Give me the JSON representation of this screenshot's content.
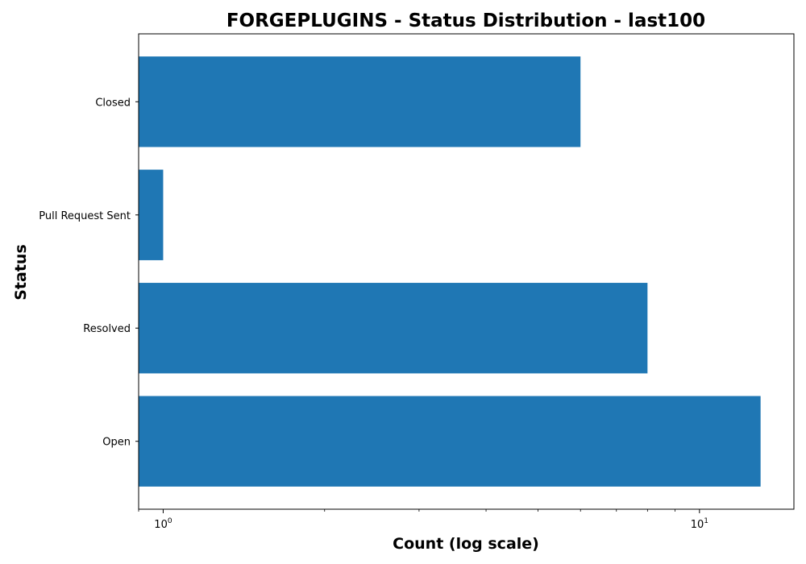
{
  "chart_data": {
    "type": "bar",
    "orientation": "horizontal",
    "title": "FORGEPLUGINS - Status Distribution - last100",
    "xlabel": "Count (log scale)",
    "ylabel": "Status",
    "x_scale": "log",
    "xlim": [
      0.9,
      15
    ],
    "x_ticks": [
      {
        "base": "10",
        "exponent": "0",
        "value": 1
      },
      {
        "base": "10",
        "exponent": "1",
        "value": 10
      }
    ],
    "categories": [
      "Closed",
      "Pull Request Sent",
      "Resolved",
      "Open"
    ],
    "values": [
      6,
      1,
      8,
      13
    ],
    "bar_color": "#1f77b4",
    "grid": false,
    "legend": "none"
  }
}
